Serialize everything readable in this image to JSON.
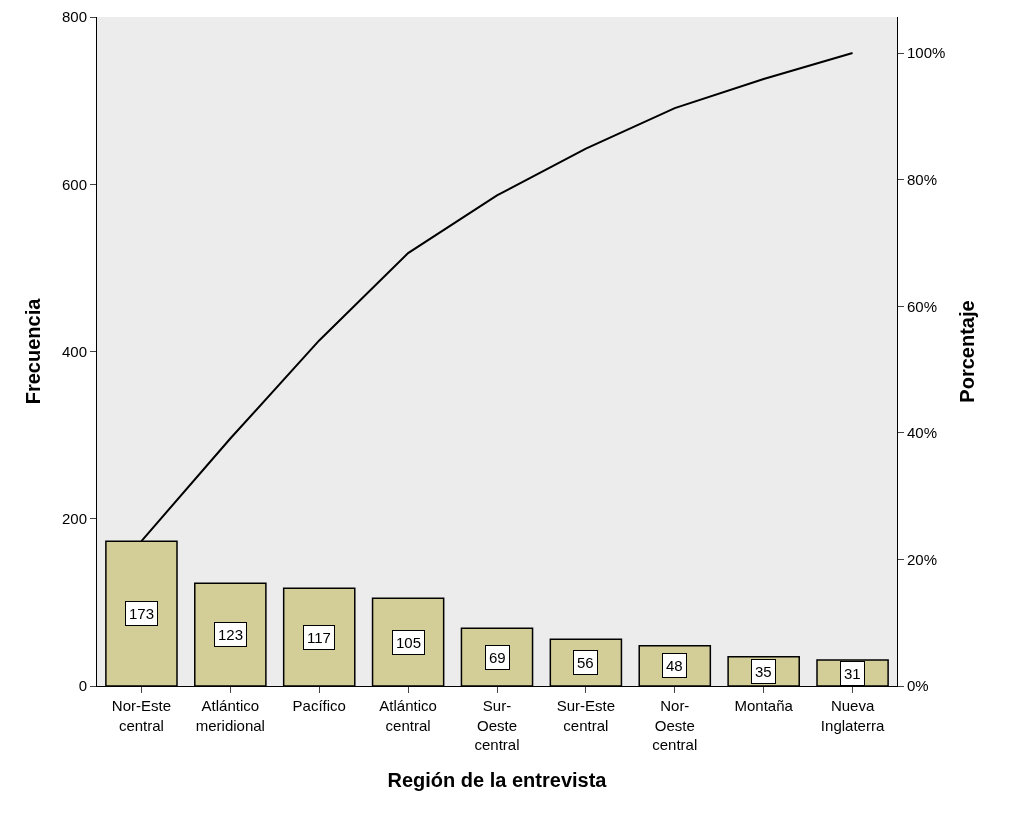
{
  "chart_data": {
    "type": "bar",
    "xlabel": "Región de la entrevista",
    "ylabel": "Frecuencia",
    "y2label": "Porcentaje",
    "categories": [
      "Nor-Este central",
      "Atlántico meridional",
      "Pacífico",
      "Atlántico central",
      "Sur-Oeste central",
      "Sur-Este central",
      "Nor-Oeste central",
      "Montaña",
      "Nueva Inglaterra"
    ],
    "series": [
      {
        "color": "#d3ce97",
        "values": [
          173,
          123,
          117,
          105,
          69,
          56,
          48,
          35,
          31
        ],
        "value_labels": [
          "173",
          "123",
          "117",
          "105",
          "69",
          "56",
          "48",
          "35",
          "31"
        ]
      },
      {
        "type": "line",
        "axis": "y2",
        "color": "#000000",
        "values": [
          22.9,
          39.1,
          54.6,
          68.4,
          77.5,
          84.9,
          91.3,
          95.9,
          100
        ]
      }
    ],
    "marker": "none",
    "line_style": "solid",
    "grid": false,
    "ylim": [
      0,
      800
    ],
    "yticks": [
      0,
      200,
      400,
      600,
      800
    ],
    "y2lim": [
      0,
      105.7
    ],
    "y2ticks": [
      {
        "value": 0,
        "label": "0%"
      },
      {
        "value": 20,
        "label": "20%"
      },
      {
        "value": 40,
        "label": "40%"
      },
      {
        "value": 60,
        "label": "60%"
      },
      {
        "value": 80,
        "label": "80%"
      },
      {
        "value": 100,
        "label": "100%"
      }
    ]
  }
}
